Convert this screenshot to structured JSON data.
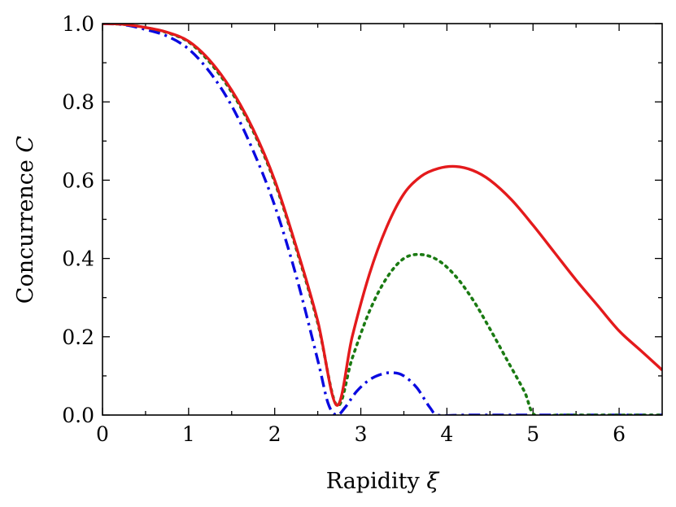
{
  "chart_data": {
    "type": "line",
    "xlabel": "Rapidity ξ",
    "xlabel_text": "Rapidity",
    "xlabel_symbol": "ξ",
    "ylabel": "Concurrence C",
    "ylabel_text": "Concurrence",
    "ylabel_symbol": "C",
    "xlim": [
      0,
      6.5
    ],
    "ylim": [
      0,
      1.0
    ],
    "x_ticks": [
      0,
      1,
      2,
      3,
      4,
      5,
      6
    ],
    "x_tick_labels": [
      "0",
      "1",
      "2",
      "3",
      "4",
      "5",
      "6"
    ],
    "y_ticks": [
      0.0,
      0.2,
      0.4,
      0.6,
      0.8,
      1.0
    ],
    "y_tick_labels": [
      "0.0",
      "0.2",
      "0.4",
      "0.6",
      "0.8",
      "1.0"
    ],
    "grid": false,
    "series": [
      {
        "color": "#e41a1c",
        "style": "solid",
        "x": [
          0,
          0.25,
          0.5,
          0.75,
          1.0,
          1.25,
          1.5,
          1.75,
          2.0,
          2.25,
          2.5,
          2.72,
          2.9,
          3.1,
          3.3,
          3.5,
          3.7,
          3.9,
          4.1,
          4.3,
          4.5,
          4.75,
          5.0,
          5.25,
          5.5,
          5.75,
          6.0,
          6.25,
          6.5
        ],
        "y": [
          1.0,
          0.998,
          0.99,
          0.978,
          0.955,
          0.905,
          0.83,
          0.73,
          0.6,
          0.43,
          0.24,
          0.025,
          0.2,
          0.36,
          0.48,
          0.565,
          0.61,
          0.63,
          0.635,
          0.625,
          0.6,
          0.55,
          0.485,
          0.415,
          0.345,
          0.28,
          0.215,
          0.165,
          0.115
        ]
      },
      {
        "color": "#1a7a12",
        "style": "dotted",
        "x": [
          0,
          0.25,
          0.5,
          0.75,
          1.0,
          1.25,
          1.5,
          1.75,
          2.0,
          2.25,
          2.5,
          2.72,
          2.9,
          3.1,
          3.3,
          3.5,
          3.7,
          3.9,
          4.1,
          4.3,
          4.5,
          4.7,
          4.9,
          5.02,
          5.3,
          5.6,
          6.0,
          6.5
        ],
        "y": [
          1.0,
          0.998,
          0.99,
          0.977,
          0.953,
          0.9,
          0.825,
          0.725,
          0.595,
          0.425,
          0.235,
          0.025,
          0.145,
          0.265,
          0.35,
          0.4,
          0.41,
          0.395,
          0.355,
          0.295,
          0.22,
          0.14,
          0.06,
          0.0,
          0.0,
          0.0,
          0.0,
          0.0
        ]
      },
      {
        "color": "#0a0ae0",
        "style": "dashdot",
        "x": [
          0,
          0.25,
          0.5,
          0.75,
          1.0,
          1.25,
          1.5,
          1.75,
          2.0,
          2.25,
          2.5,
          2.62,
          2.72,
          2.82,
          2.95,
          3.1,
          3.25,
          3.38,
          3.5,
          3.65,
          3.8,
          3.9,
          4.2,
          4.6,
          5.0,
          5.5,
          6.0,
          6.5
        ],
        "y": [
          1.0,
          0.997,
          0.985,
          0.968,
          0.935,
          0.875,
          0.79,
          0.675,
          0.535,
          0.355,
          0.14,
          0.03,
          0.0,
          0.02,
          0.06,
          0.09,
          0.105,
          0.108,
          0.1,
          0.07,
          0.02,
          0.0,
          0.0,
          0.0,
          0.0,
          0.0,
          0.0,
          0.0
        ]
      }
    ]
  }
}
